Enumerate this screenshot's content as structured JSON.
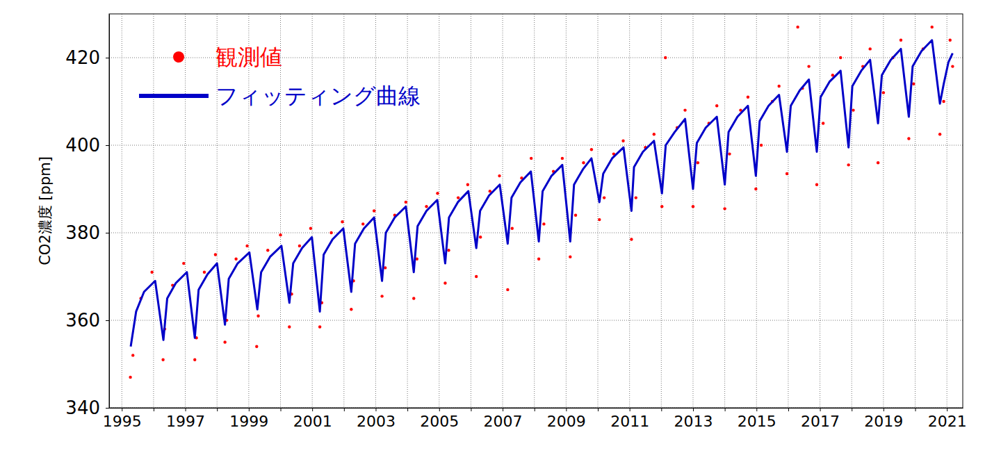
{
  "chart_data": {
    "type": "line",
    "y_label": "CO2濃度 [ppm]",
    "xlim": [
      1994.6,
      2021.5
    ],
    "xticks": [
      1995,
      {
        "value": 1996,
        "label": null
      },
      1997,
      {
        "value": 1998,
        "label": null
      },
      1999,
      {
        "value": 2000,
        "label": null
      },
      2001,
      {
        "value": 2002,
        "label": null
      },
      2003,
      {
        "value": 2004,
        "label": null
      },
      2005,
      {
        "value": 2006,
        "label": null
      },
      2007,
      {
        "value": 2008,
        "label": null
      },
      2009,
      {
        "value": 2010,
        "label": null
      },
      2011,
      {
        "value": 2012,
        "label": null
      },
      2013,
      {
        "value": 2014,
        "label": null
      },
      2015,
      {
        "value": 2016,
        "label": null
      },
      2017,
      {
        "value": 2018,
        "label": null
      },
      2019,
      {
        "value": 2020,
        "label": null
      },
      2021
    ],
    "ylim": [
      340,
      430
    ],
    "yticks": [
      340,
      360,
      380,
      400,
      420
    ],
    "grid": true,
    "legend": "upper left",
    "series": [
      {
        "name": "観測値",
        "type": "scatter",
        "marker": "circle",
        "color": "#ff0000",
        "x": [
          1995.27,
          1995.35,
          1995.6,
          1995.95,
          1996.3,
          1996.35,
          1996.6,
          1996.95,
          1997.3,
          1997.35,
          1997.6,
          1997.95,
          1998.25,
          1998.3,
          1998.6,
          1998.95,
          1999.25,
          1999.3,
          1999.6,
          2000.0,
          2000.28,
          2000.35,
          2000.6,
          2000.95,
          2001.24,
          2001.3,
          2001.6,
          2001.95,
          2002.23,
          2002.3,
          2002.6,
          2002.95,
          2003.2,
          2003.3,
          2003.6,
          2003.95,
          2004.2,
          2004.3,
          2004.6,
          2004.95,
          2005.19,
          2005.3,
          2005.6,
          2005.9,
          2006.17,
          2006.3,
          2006.6,
          2006.9,
          2007.16,
          2007.3,
          2007.6,
          2007.9,
          2008.14,
          2008.3,
          2008.6,
          2008.88,
          2009.13,
          2009.3,
          2009.55,
          2009.8,
          2010.05,
          2010.2,
          2010.5,
          2010.8,
          2011.06,
          2011.2,
          2011.5,
          2011.77,
          2012.02,
          2012.13,
          2012.5,
          2012.75,
          2013.0,
          2013.15,
          2013.5,
          2013.75,
          2014.0,
          2014.15,
          2014.5,
          2014.73,
          2014.98,
          2015.15,
          2015.5,
          2015.71,
          2015.96,
          2016.3,
          2016.45,
          2016.65,
          2016.9,
          2017.1,
          2017.4,
          2017.65,
          2017.9,
          2018.05,
          2018.35,
          2018.58,
          2018.83,
          2019.0,
          2019.3,
          2019.55,
          2019.8,
          2019.95,
          2020.25,
          2020.53,
          2020.78,
          2020.9,
          2021.1,
          2021.18
        ],
        "values": [
          347,
          352,
          365,
          371,
          351,
          358,
          368,
          373,
          351,
          356,
          371,
          375,
          355,
          360,
          374,
          377,
          354,
          361,
          376,
          379.5,
          358.5,
          366,
          377,
          381,
          358.5,
          364,
          380,
          382.5,
          362.5,
          369,
          382,
          385,
          365.5,
          372,
          384,
          387,
          365,
          374,
          386,
          389,
          368.5,
          376,
          388,
          391,
          370,
          379,
          389.5,
          393,
          367,
          381,
          392.5,
          397,
          374,
          382,
          394,
          397,
          374.5,
          384,
          396,
          399,
          383,
          388,
          398,
          401,
          378.5,
          388,
          399.5,
          402.5,
          386,
          420,
          404,
          408,
          386,
          396,
          405,
          409,
          385.5,
          398,
          408,
          411,
          390,
          400,
          410,
          413.5,
          393.5,
          427,
          413,
          418,
          391,
          405,
          416,
          420,
          395.5,
          408,
          418,
          422,
          396,
          412,
          420,
          424,
          401.5,
          414,
          422,
          427,
          402.5,
          410,
          424,
          418
        ]
      },
      {
        "name": "フィッティング曲線",
        "type": "line",
        "line_style": "solid",
        "color": "#0000c8",
        "x": [
          1995.28,
          1995.45,
          1995.7,
          1996.05,
          1996.31,
          1996.43,
          1996.7,
          1997.05,
          1997.3,
          1997.42,
          1997.7,
          1998.0,
          1998.25,
          1998.37,
          1998.65,
          1999.02,
          1999.27,
          1999.39,
          1999.67,
          2000.03,
          2000.28,
          2000.4,
          2000.68,
          2000.99,
          2001.24,
          2001.36,
          2001.64,
          2001.98,
          2002.23,
          2002.35,
          2002.63,
          2002.95,
          2003.2,
          2003.32,
          2003.6,
          2003.95,
          2004.2,
          2004.32,
          2004.6,
          2004.94,
          2005.19,
          2005.31,
          2005.59,
          2005.92,
          2006.17,
          2006.29,
          2006.57,
          2006.91,
          2007.16,
          2007.28,
          2007.56,
          2007.89,
          2008.14,
          2008.26,
          2008.54,
          2008.88,
          2009.13,
          2009.25,
          2009.53,
          2009.8,
          2010.05,
          2010.17,
          2010.45,
          2010.81,
          2011.06,
          2011.14,
          2011.42,
          2011.77,
          2012.02,
          2012.14,
          2012.42,
          2012.75,
          2013.0,
          2013.12,
          2013.4,
          2013.75,
          2014.0,
          2014.12,
          2014.4,
          2014.73,
          2014.98,
          2015.1,
          2015.38,
          2015.71,
          2015.96,
          2016.08,
          2016.36,
          2016.65,
          2016.9,
          2017.02,
          2017.3,
          2017.65,
          2017.9,
          2018.02,
          2018.3,
          2018.58,
          2018.83,
          2018.95,
          2019.23,
          2019.55,
          2019.8,
          2019.92,
          2020.2,
          2020.53,
          2020.78,
          2020.9,
          2021.05,
          2021.18
        ],
        "values": [
          354,
          362,
          366.5,
          369,
          355.5,
          365,
          368.5,
          371,
          356,
          367,
          370.5,
          373,
          359,
          369.5,
          373,
          375.5,
          362.5,
          371,
          374.5,
          377,
          364,
          373,
          376.5,
          379,
          362,
          375,
          378.5,
          381,
          366.5,
          377.5,
          381,
          383.5,
          369,
          380,
          383.5,
          386,
          371,
          381.5,
          385,
          387.5,
          373,
          383.5,
          387,
          389.5,
          376.5,
          385,
          388.5,
          391,
          377.5,
          388,
          391.5,
          394,
          378,
          389.5,
          393,
          395.5,
          378,
          391,
          394.5,
          397,
          387,
          393.5,
          397,
          399.5,
          385,
          395,
          398.5,
          401,
          389,
          400,
          403,
          406,
          390,
          400.5,
          404,
          406.5,
          391,
          403,
          406.5,
          409,
          393,
          405.5,
          409,
          411.5,
          398.5,
          409,
          412.5,
          415,
          398.5,
          411,
          414.5,
          417,
          399.5,
          413.5,
          417,
          419.5,
          405,
          416,
          419.5,
          422,
          406.5,
          418,
          421.5,
          424,
          409.5,
          414,
          419,
          421
        ]
      }
    ]
  }
}
